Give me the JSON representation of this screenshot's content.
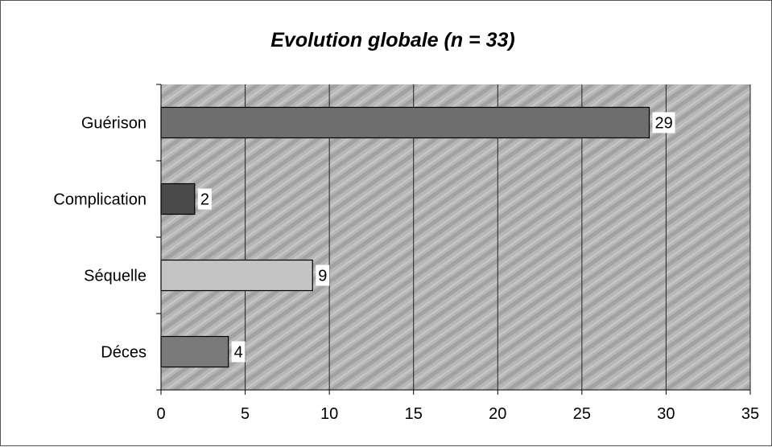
{
  "chart_data": {
    "type": "bar",
    "orientation": "horizontal",
    "title": "Evolution globale (n = 33)",
    "categories": [
      "Guérison",
      "Complication",
      "Séquelle",
      "Déces"
    ],
    "values": [
      29,
      2,
      9,
      4
    ],
    "data_labels": [
      "29",
      "2",
      "9",
      "4"
    ],
    "xlim": [
      0,
      35
    ],
    "x_ticks": [
      0,
      5,
      10,
      15,
      20,
      25,
      30,
      35
    ],
    "x_tick_labels": [
      "0",
      "5",
      "10",
      "15",
      "20",
      "25",
      "30",
      "35"
    ],
    "xlabel": "",
    "ylabel": "",
    "grid": "vertical",
    "legend": "none",
    "colors": {
      "bars": [
        "#6e6e6e",
        "#4a4a4a",
        "#c4c4c4",
        "#7a7a7a"
      ],
      "plot_background": "#b3b3b3",
      "gridline": "#222222"
    }
  }
}
